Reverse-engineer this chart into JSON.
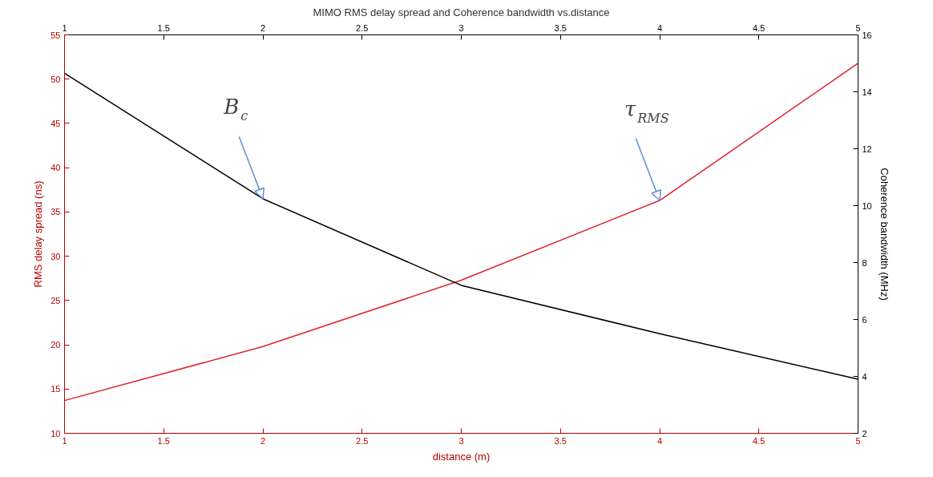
{
  "chart_data": {
    "type": "line",
    "title": "MIMO RMS delay spread and Coherence bandwidth vs.distance",
    "xlabel": "distance (m)",
    "ylabel": "RMS delay spread (ns)",
    "y2label": "Coherence bandwidth (MHz)",
    "x": [
      1,
      2,
      3,
      4,
      5
    ],
    "series": [
      {
        "color": "#e0202a",
        "values": [
          13.7,
          19.8,
          27.3,
          36.3,
          51.8
        ]
      },
      {
        "color": "#000000",
        "values": [
          14.65,
          10.24,
          7.2,
          5.5,
          3.9
        ],
        "axis": "y2"
      }
    ],
    "xlim": [
      1,
      5
    ],
    "xticks": [
      1,
      1.5,
      2,
      2.5,
      3,
      3.5,
      4,
      4.5,
      5
    ],
    "x2lim": [
      1,
      5
    ],
    "x2ticks": [
      1,
      1.5,
      2,
      2.5,
      3,
      3.5,
      4,
      4.5,
      5
    ],
    "ylim": [
      10,
      55
    ],
    "yticks": [
      10,
      15,
      20,
      25,
      30,
      35,
      40,
      45,
      50,
      55
    ],
    "y2lim": [
      2,
      16
    ],
    "y2ticks": [
      2,
      4,
      6,
      8,
      10,
      12,
      14,
      16
    ],
    "annotations": [
      {
        "text": "B$_{c}$",
        "x": 2,
        "y": 36.5
      },
      {
        "text": "τ$_{RMS}$",
        "x": 4,
        "y": 36.3
      }
    ],
    "grid": false,
    "marker": "none",
    "line_style": "solid"
  }
}
